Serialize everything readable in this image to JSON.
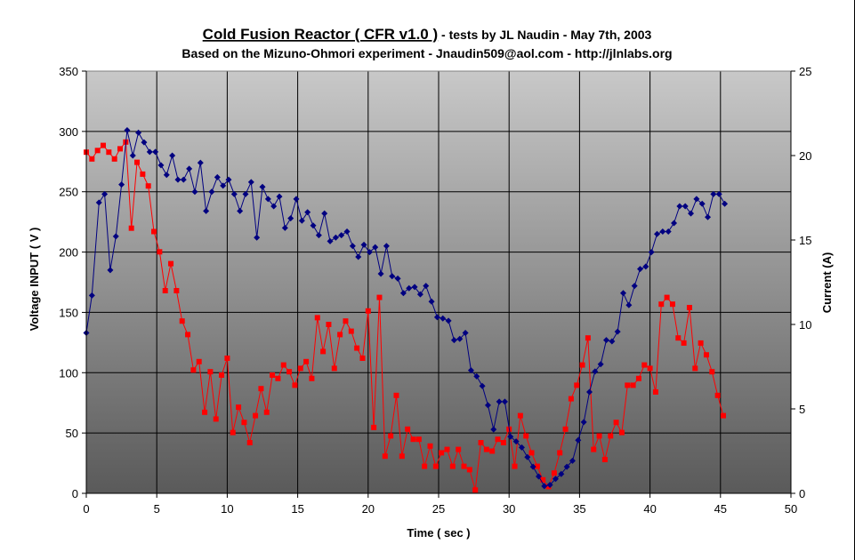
{
  "chart_data": {
    "type": "line",
    "title_main": "Cold Fusion Reactor ( CFR v1.0 )",
    "title_rest": " - tests by JL Naudin - May 7th, 2003",
    "subtitle": "Based on the Mizuno-Ohmori experiment - Jnaudin509@aol.com - http://jlnlabs.org",
    "xlabel": "Time ( sec )",
    "ylabel": "Voltage INPUT ( V )",
    "y2label": "Current (A)",
    "xlim": [
      0,
      50
    ],
    "ylim": [
      0,
      350
    ],
    "y2lim": [
      0,
      25
    ],
    "xticks": [
      "0",
      "5",
      "10",
      "15",
      "20",
      "25",
      "30",
      "35",
      "40",
      "45",
      "50"
    ],
    "yticks": [
      "0",
      "50",
      "100",
      "150",
      "200",
      "250",
      "300",
      "350"
    ],
    "y2ticks": [
      "0",
      "5",
      "10",
      "15",
      "20",
      "25"
    ],
    "grid": true,
    "colors": {
      "voltage": "#000080",
      "current": "#ff0000",
      "plot_top": "#c8c8c8",
      "plot_bottom": "#5a5a5a"
    },
    "series": [
      {
        "axis": "left",
        "color": "#000080",
        "marker": "diamond",
        "x": [
          0.0,
          0.4,
          0.9,
          1.3,
          1.7,
          2.1,
          2.5,
          2.9,
          3.3,
          3.7,
          4.1,
          4.5,
          4.9,
          5.3,
          5.7,
          6.1,
          6.5,
          6.9,
          7.3,
          7.7,
          8.1,
          8.5,
          8.9,
          9.3,
          9.7,
          10.1,
          10.5,
          10.9,
          11.3,
          11.7,
          12.1,
          12.5,
          12.9,
          13.3,
          13.7,
          14.1,
          14.5,
          14.9,
          15.3,
          15.7,
          16.1,
          16.5,
          16.9,
          17.3,
          17.7,
          18.1,
          18.5,
          18.9,
          19.3,
          19.7,
          20.1,
          20.5,
          20.9,
          21.3,
          21.7,
          22.1,
          22.5,
          22.9,
          23.3,
          23.7,
          24.1,
          24.5,
          24.9,
          25.3,
          25.7,
          26.1,
          26.5,
          26.9,
          27.3,
          27.7,
          28.1,
          28.5,
          28.9,
          29.3,
          29.7,
          30.1,
          30.5,
          30.9,
          31.3,
          31.7,
          32.1,
          32.5,
          32.9,
          33.3,
          33.7,
          34.1,
          34.5,
          34.9,
          35.3,
          35.7,
          36.1,
          36.5,
          36.9,
          37.3,
          37.7,
          38.1,
          38.5,
          38.9,
          39.3,
          39.7,
          40.1,
          40.5,
          40.9,
          41.3,
          41.7,
          42.1,
          42.5,
          42.9,
          43.3,
          43.7,
          44.1,
          44.5,
          44.9,
          45.3
        ],
        "values": [
          133,
          164,
          241,
          248,
          185,
          213,
          256,
          301,
          280,
          299,
          291,
          283,
          283,
          272,
          264,
          280,
          260,
          260,
          269,
          250,
          274,
          234,
          250,
          262,
          255,
          260,
          248,
          234,
          248,
          258,
          212,
          254,
          244,
          238,
          246,
          220,
          228,
          244,
          226,
          233,
          222,
          214,
          232,
          209,
          212,
          214,
          217,
          205,
          196,
          206,
          200,
          204,
          182,
          205,
          180,
          178,
          166,
          170,
          171,
          165,
          172,
          159,
          146,
          145,
          143,
          127,
          128,
          133,
          102,
          97,
          89,
          73,
          53,
          76,
          76,
          47,
          43,
          38,
          30,
          22,
          14,
          6,
          7,
          12,
          16,
          22,
          27,
          44,
          59,
          84,
          101,
          107,
          127,
          126,
          134,
          166,
          156,
          172,
          186,
          188,
          200,
          215,
          217,
          217,
          224,
          238,
          238,
          232,
          244,
          240,
          229,
          248,
          248,
          240
        ]
      },
      {
        "axis": "right",
        "color": "#ff0000",
        "marker": "square",
        "x": [
          0.0,
          0.4,
          0.8,
          1.2,
          1.6,
          2.0,
          2.4,
          2.8,
          3.2,
          3.6,
          4.0,
          4.4,
          4.8,
          5.2,
          5.6,
          6.0,
          6.4,
          6.8,
          7.2,
          7.6,
          8.0,
          8.4,
          8.8,
          9.2,
          9.6,
          10.0,
          10.4,
          10.8,
          11.2,
          11.6,
          12.0,
          12.4,
          12.8,
          13.2,
          13.6,
          14.0,
          14.4,
          14.8,
          15.2,
          15.6,
          16.0,
          16.4,
          16.8,
          17.2,
          17.6,
          18.0,
          18.4,
          18.8,
          19.2,
          19.6,
          20.0,
          20.4,
          20.8,
          21.2,
          21.6,
          22.0,
          22.4,
          22.8,
          23.2,
          23.6,
          24.0,
          24.4,
          24.8,
          25.2,
          25.6,
          26.0,
          26.4,
          26.8,
          27.2,
          27.6,
          28.0,
          28.4,
          28.8,
          29.2,
          29.6,
          30.0,
          30.4,
          30.8,
          31.2,
          31.6,
          32.0,
          32.4,
          32.8,
          33.2,
          33.6,
          34.0,
          34.4,
          34.8,
          35.2,
          35.6,
          36.0,
          36.4,
          36.8,
          37.2,
          37.6,
          38.0,
          38.4,
          38.8,
          39.2,
          39.6,
          40.0,
          40.4,
          40.8,
          41.2,
          41.6,
          42.0,
          42.4,
          42.8,
          43.2,
          43.6,
          44.0,
          44.4,
          44.8,
          45.2
        ],
        "values": [
          20.2,
          19.8,
          20.3,
          20.6,
          20.2,
          19.8,
          20.4,
          20.8,
          15.7,
          19.6,
          18.9,
          18.2,
          15.5,
          14.3,
          12.0,
          13.6,
          12.0,
          10.2,
          9.4,
          7.3,
          7.8,
          4.8,
          7.2,
          4.4,
          7.0,
          8.0,
          3.6,
          5.1,
          4.2,
          3.0,
          4.6,
          6.2,
          4.8,
          7.0,
          6.8,
          7.6,
          7.2,
          6.4,
          7.4,
          7.8,
          6.8,
          10.4,
          8.4,
          10.0,
          7.4,
          9.4,
          10.2,
          9.6,
          8.6,
          8.0,
          10.8,
          3.9,
          11.6,
          2.2,
          3.4,
          5.8,
          2.2,
          3.8,
          3.2,
          3.2,
          1.6,
          2.8,
          1.6,
          2.4,
          2.6,
          1.6,
          2.6,
          1.6,
          1.4,
          0.2,
          3.0,
          2.6,
          2.5,
          3.2,
          3.0,
          3.8,
          1.6,
          4.6,
          3.4,
          2.4,
          1.6,
          0.8,
          0.4,
          1.2,
          2.4,
          3.8,
          5.6,
          6.4,
          7.6,
          9.2,
          2.6,
          3.4,
          2.0,
          3.4,
          4.2,
          3.6,
          6.4,
          6.4,
          6.8,
          7.6,
          7.4,
          6.0,
          11.2,
          11.6,
          11.2,
          9.2,
          8.9,
          11.0,
          7.4,
          8.9,
          8.2,
          7.2,
          5.8,
          4.6
        ]
      }
    ]
  }
}
